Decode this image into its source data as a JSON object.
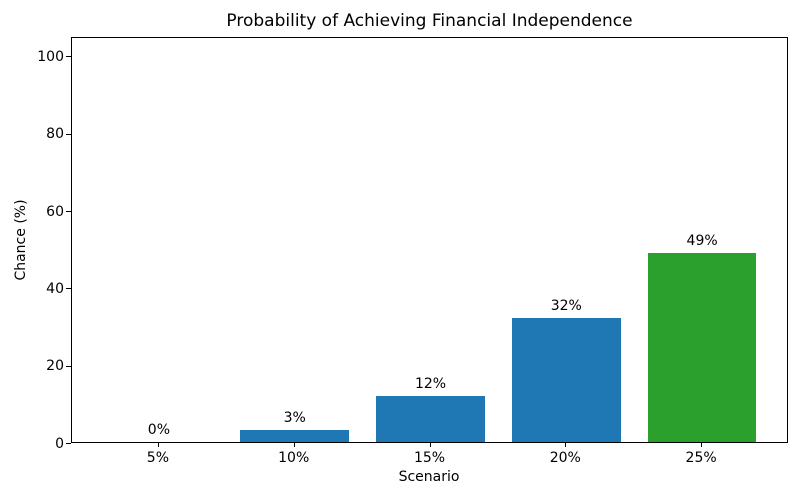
{
  "chart_data": {
    "type": "bar",
    "title": "Probability of Achieving Financial Independence",
    "xlabel": "Scenario",
    "ylabel": "Chance (%)",
    "categories": [
      "5%",
      "10%",
      "15%",
      "20%",
      "25%"
    ],
    "values": [
      0,
      3,
      12,
      32,
      49
    ],
    "bar_labels": [
      "0%",
      "3%",
      "12%",
      "32%",
      "49%"
    ],
    "bar_colors": [
      "#1f77b4",
      "#1f77b4",
      "#1f77b4",
      "#1f77b4",
      "#2ca02c"
    ],
    "ylim": [
      0,
      105
    ],
    "yticks": [
      0,
      20,
      40,
      60,
      80,
      100
    ],
    "bar_width_fraction": 0.8,
    "x_edge_margin_units": 0.64,
    "grid": false,
    "legend_position": "none",
    "spine_color": "#000000",
    "background_color": "#ffffff"
  }
}
